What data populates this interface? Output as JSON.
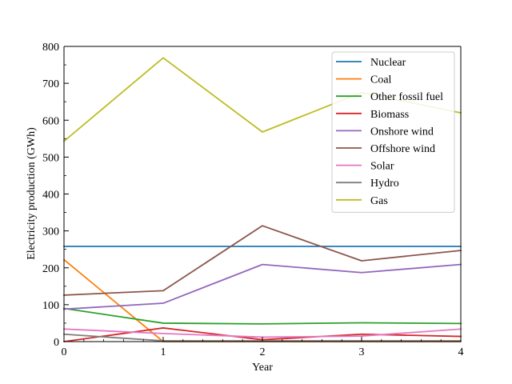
{
  "chart_data": {
    "type": "line",
    "xlabel": "Year",
    "ylabel": "Electricity production (GWh)",
    "xlim": [
      0,
      4
    ],
    "ylim": [
      0,
      800
    ],
    "x": [
      0,
      1,
      2,
      3,
      4
    ],
    "xticks": [
      0,
      1,
      2,
      3,
      4
    ],
    "yticks": [
      0,
      100,
      200,
      300,
      400,
      500,
      600,
      700,
      800
    ],
    "grid": false,
    "legend_position": "upper right",
    "series": [
      {
        "name": "Nuclear",
        "color": "#1f77b4",
        "values": [
          258,
          258,
          258,
          258,
          258
        ]
      },
      {
        "name": "Coal",
        "color": "#ff7f0e",
        "values": [
          222,
          0,
          0,
          0,
          0
        ]
      },
      {
        "name": "Other fossil fuel",
        "color": "#2ca02c",
        "values": [
          90,
          50,
          48,
          51,
          49
        ]
      },
      {
        "name": "Biomass",
        "color": "#d62728",
        "values": [
          0,
          37,
          5,
          20,
          14
        ]
      },
      {
        "name": "Onshore wind",
        "color": "#9467bd",
        "values": [
          88,
          104,
          209,
          187,
          209
        ]
      },
      {
        "name": "Offshore wind",
        "color": "#8c564b",
        "values": [
          126,
          138,
          314,
          219,
          247
        ]
      },
      {
        "name": "Solar",
        "color": "#e377c2",
        "values": [
          34,
          22,
          12,
          15,
          34
        ]
      },
      {
        "name": "Hydro",
        "color": "#7f7f7f",
        "values": [
          20,
          2,
          2,
          2,
          2
        ]
      },
      {
        "name": "Gas",
        "color": "#bcbd22",
        "values": [
          543,
          769,
          568,
          675,
          620
        ]
      }
    ]
  }
}
